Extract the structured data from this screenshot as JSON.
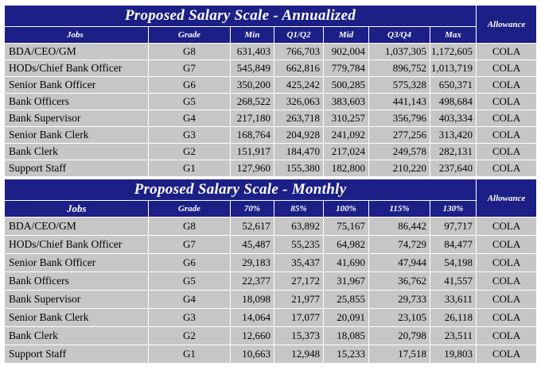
{
  "annual": {
    "title": "Proposed Salary Scale - Annualized",
    "allowance_label": "Allowance",
    "headers": [
      "Jobs",
      "Grade",
      "Min",
      "Q1/Q2",
      "Mid",
      "Q3/Q4",
      "Max"
    ],
    "rows": [
      {
        "job": "BDA/CEO/GM",
        "grade": "G8",
        "v": [
          "631,403",
          "766,703",
          "902,004",
          "1,037,305",
          "1,172,605"
        ],
        "allowance": "COLA"
      },
      {
        "job": "HODs/Chief Bank Officer",
        "grade": "G7",
        "v": [
          "545,849",
          "662,816",
          "779,784",
          "896,752",
          "1,013,719"
        ],
        "allowance": "COLA"
      },
      {
        "job": "Senior Bank Officer",
        "grade": "G6",
        "v": [
          "350,200",
          "425,242",
          "500,285",
          "575,328",
          "650,371"
        ],
        "allowance": "COLA"
      },
      {
        "job": "Bank Officers",
        "grade": "G5",
        "v": [
          "268,522",
          "326,063",
          "383,603",
          "441,143",
          "498,684"
        ],
        "allowance": "COLA"
      },
      {
        "job": "Bank Supervisor",
        "grade": "G4",
        "v": [
          "217,180",
          "263,718",
          "310,257",
          "356,796",
          "403,334"
        ],
        "allowance": "COLA"
      },
      {
        "job": "Senior Bank Clerk",
        "grade": "G3",
        "v": [
          "168,764",
          "204,928",
          "241,092",
          "277,256",
          "313,420"
        ],
        "allowance": "COLA"
      },
      {
        "job": "Bank Clerk",
        "grade": "G2",
        "v": [
          "151,917",
          "184,470",
          "217,024",
          "249,578",
          "282,131"
        ],
        "allowance": "COLA"
      },
      {
        "job": "Support Staff",
        "grade": "G1",
        "v": [
          "127,960",
          "155,380",
          "182,800",
          "210,220",
          "237,640"
        ],
        "allowance": "COLA"
      }
    ]
  },
  "monthly": {
    "title": "Proposed Salary Scale - Monthly",
    "allowance_label": "Allowance",
    "headers": [
      "Jobs",
      "Grade",
      "70%",
      "85%",
      "100%",
      "115%",
      "130%"
    ],
    "rows": [
      {
        "job": "BDA/CEO/GM",
        "grade": "G8",
        "v": [
          "52,617",
          "63,892",
          "75,167",
          "86,442",
          "97,717"
        ],
        "allowance": "COLA"
      },
      {
        "job": "HODs/Chief Bank Officer",
        "grade": "G7",
        "v": [
          "45,487",
          "55,235",
          "64,982",
          "74,729",
          "84,477"
        ],
        "allowance": "COLA"
      },
      {
        "job": "Senior Bank Officer",
        "grade": "G6",
        "v": [
          "29,183",
          "35,437",
          "41,690",
          "47,944",
          "54,198"
        ],
        "allowance": "COLA"
      },
      {
        "job": "Bank Officers",
        "grade": "G5",
        "v": [
          "22,377",
          "27,172",
          "31,967",
          "36,762",
          "41,557"
        ],
        "allowance": "COLA"
      },
      {
        "job": "Bank Supervisor",
        "grade": "G4",
        "v": [
          "18,098",
          "21,977",
          "25,855",
          "29,733",
          "33,611"
        ],
        "allowance": "COLA"
      },
      {
        "job": "Senior Bank Clerk",
        "grade": "G3",
        "v": [
          "14,064",
          "17,077",
          "20,091",
          "23,105",
          "26,118"
        ],
        "allowance": "COLA"
      },
      {
        "job": "Bank Clerk",
        "grade": "G2",
        "v": [
          "12,660",
          "15,373",
          "18,085",
          "20,798",
          "23,511"
        ],
        "allowance": "COLA"
      },
      {
        "job": "Support Staff",
        "grade": "G1",
        "v": [
          "10,663",
          "12,948",
          "15,233",
          "17,518",
          "19,803"
        ],
        "allowance": "COLA"
      }
    ]
  }
}
